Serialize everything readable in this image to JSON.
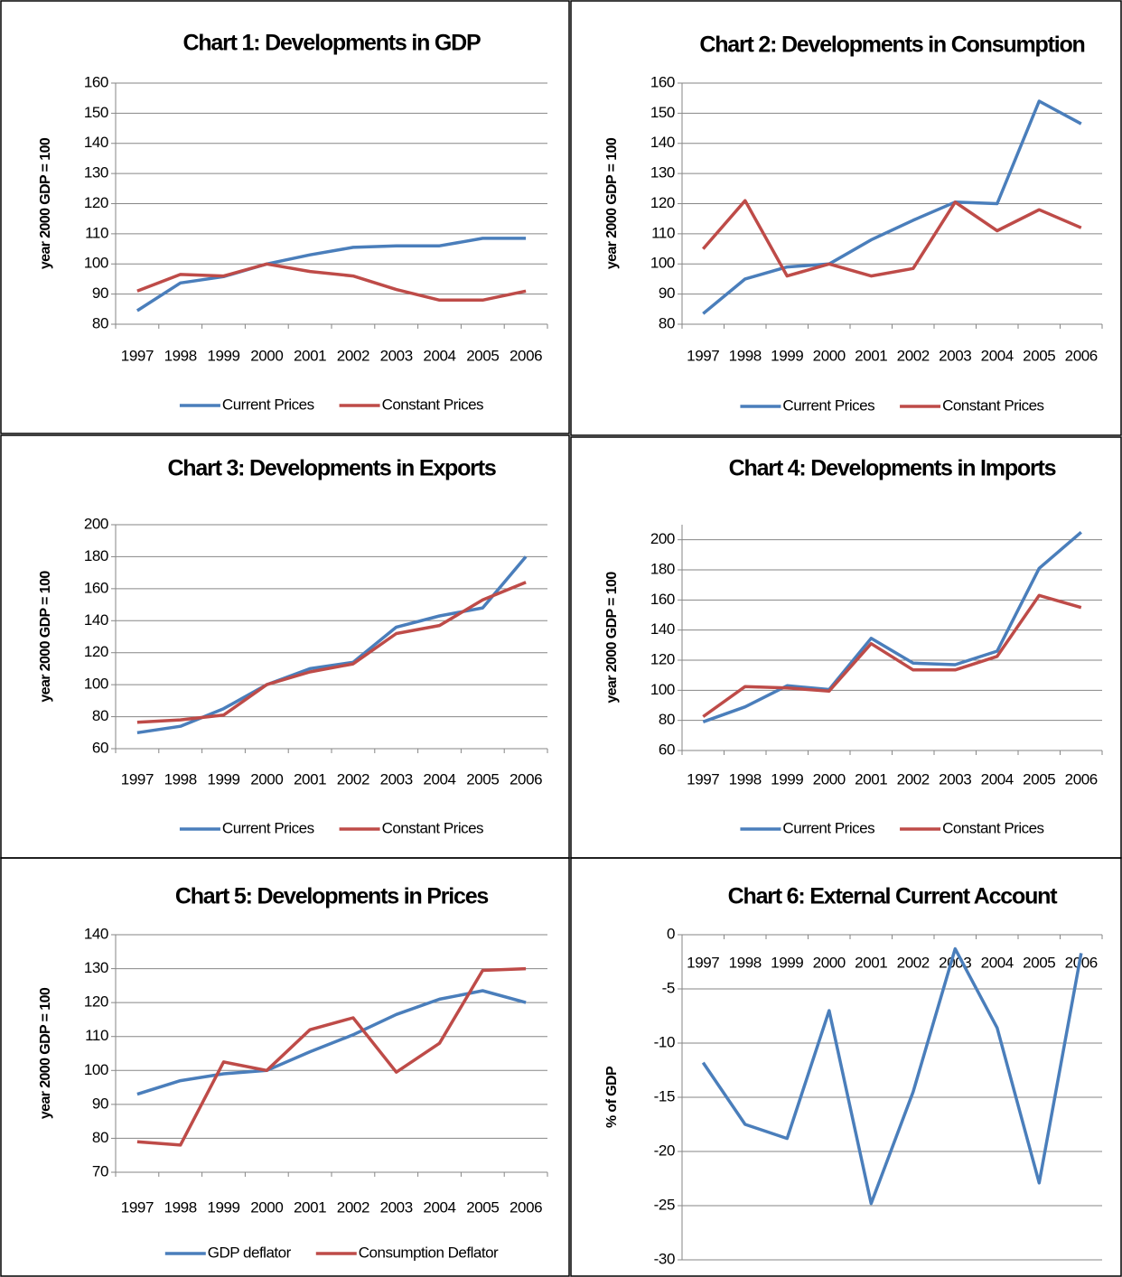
{
  "chart_data": [
    {
      "type": "line",
      "title": "Chart 1: Developments in GDP",
      "y_label": "year 2000 GDP = 100",
      "categories": [
        "1997",
        "1998",
        "1999",
        "2000",
        "2001",
        "2002",
        "2003",
        "2004",
        "2005",
        "2006"
      ],
      "series": [
        {
          "name": "Current Prices",
          "color": "#4a7ebb",
          "values": [
            84.5,
            93.7,
            95.8,
            100,
            103,
            105.5,
            106,
            106,
            108.5,
            108.5
          ]
        },
        {
          "name": "Constant Prices",
          "color": "#be4b48",
          "values": [
            91,
            96.5,
            96,
            100,
            97.5,
            96,
            91.5,
            88,
            88,
            91
          ]
        }
      ],
      "ylim": [
        80,
        160
      ],
      "yticks": [
        80,
        90,
        100,
        110,
        120,
        130,
        140,
        150,
        160
      ],
      "grid": true,
      "legend": "bottom"
    },
    {
      "type": "line",
      "title": "Chart 2: Developments in Consumption",
      "y_label": "year 2000 GDP = 100",
      "categories": [
        "1997",
        "1998",
        "1999",
        "2000",
        "2001",
        "2002",
        "2003",
        "2004",
        "2005",
        "2006"
      ],
      "series": [
        {
          "name": "Current Prices",
          "color": "#4a7ebb",
          "values": [
            83.5,
            95,
            99,
            100,
            108,
            114.5,
            120.5,
            120,
            154,
            146.5
          ]
        },
        {
          "name": "Constant Prices",
          "color": "#be4b48",
          "values": [
            105,
            121,
            96,
            100,
            96,
            98.5,
            120.5,
            111,
            118,
            112
          ]
        }
      ],
      "ylim": [
        80,
        160
      ],
      "yticks": [
        80,
        90,
        100,
        110,
        120,
        130,
        140,
        150,
        160
      ],
      "grid": true,
      "legend": "bottom"
    },
    {
      "type": "line",
      "title": "Chart 3: Developments in Exports",
      "y_label": "year 2000 GDP = 100",
      "categories": [
        "1997",
        "1998",
        "1999",
        "2000",
        "2001",
        "2002",
        "2003",
        "2004",
        "2005",
        "2006"
      ],
      "series": [
        {
          "name": "Current Prices",
          "color": "#4a7ebb",
          "values": [
            70,
            74,
            85,
            100,
            110,
            114,
            136,
            143,
            148,
            180
          ]
        },
        {
          "name": "Constant Prices",
          "color": "#be4b48",
          "values": [
            76.5,
            78,
            81,
            100,
            108,
            113,
            132,
            137,
            153,
            164
          ]
        }
      ],
      "ylim": [
        60,
        200
      ],
      "yticks": [
        60,
        80,
        100,
        120,
        140,
        160,
        180,
        200
      ],
      "grid": true,
      "legend": "bottom"
    },
    {
      "type": "line",
      "title": "Chart 4: Developments in Imports",
      "y_label": "year 2000 GDP = 100",
      "categories": [
        "1997",
        "1998",
        "1999",
        "2000",
        "2001",
        "2002",
        "2003",
        "2004",
        "2005",
        "2006"
      ],
      "series": [
        {
          "name": "Current Prices",
          "color": "#4a7ebb",
          "values": [
            79,
            89,
            103,
            100.5,
            134.5,
            118,
            117,
            126,
            181,
            205
          ]
        },
        {
          "name": "Constant Prices",
          "color": "#be4b48",
          "values": [
            82.5,
            102.5,
            101.5,
            99.5,
            131,
            113.5,
            113.5,
            122.5,
            163,
            155
          ]
        }
      ],
      "ylim": [
        60,
        210
      ],
      "yticks": [
        60,
        80,
        100,
        120,
        140,
        160,
        180,
        200
      ],
      "grid": true,
      "legend": "bottom"
    },
    {
      "type": "line",
      "title": "Chart 5: Developments in Prices",
      "y_label": "year 2000 GDP = 100",
      "categories": [
        "1997",
        "1998",
        "1999",
        "2000",
        "2001",
        "2002",
        "2003",
        "2004",
        "2005",
        "2006"
      ],
      "series": [
        {
          "name": "GDP deflator",
          "color": "#4a7ebb",
          "values": [
            93,
            97,
            99,
            100,
            105.5,
            110.5,
            116.5,
            121,
            123.5,
            120
          ]
        },
        {
          "name": "Consumption Deflator",
          "color": "#be4b48",
          "values": [
            79,
            78,
            102.5,
            100,
            112,
            115.5,
            99.5,
            108,
            129.5,
            130
          ]
        }
      ],
      "ylim": [
        70,
        140
      ],
      "yticks": [
        70,
        80,
        90,
        100,
        110,
        120,
        130,
        140
      ],
      "grid": true,
      "legend": "bottom"
    },
    {
      "type": "line",
      "title": "Chart 6: External Current Account",
      "y_label": "% of GDP",
      "categories": [
        "1997",
        "1998",
        "1999",
        "2000",
        "2001",
        "2002",
        "2003",
        "2004",
        "2005",
        "2006"
      ],
      "series": [
        {
          "color": "#4a7ebb",
          "values": [
            -11.8,
            -17.5,
            -18.8,
            -7,
            -24.8,
            -14.5,
            -1.3,
            -8.6,
            -22.9,
            -1.7
          ]
        }
      ],
      "ylim": [
        -30,
        0
      ],
      "yticks": [
        -30,
        -25,
        -20,
        -15,
        -10,
        -5,
        0
      ],
      "grid": true
    }
  ]
}
